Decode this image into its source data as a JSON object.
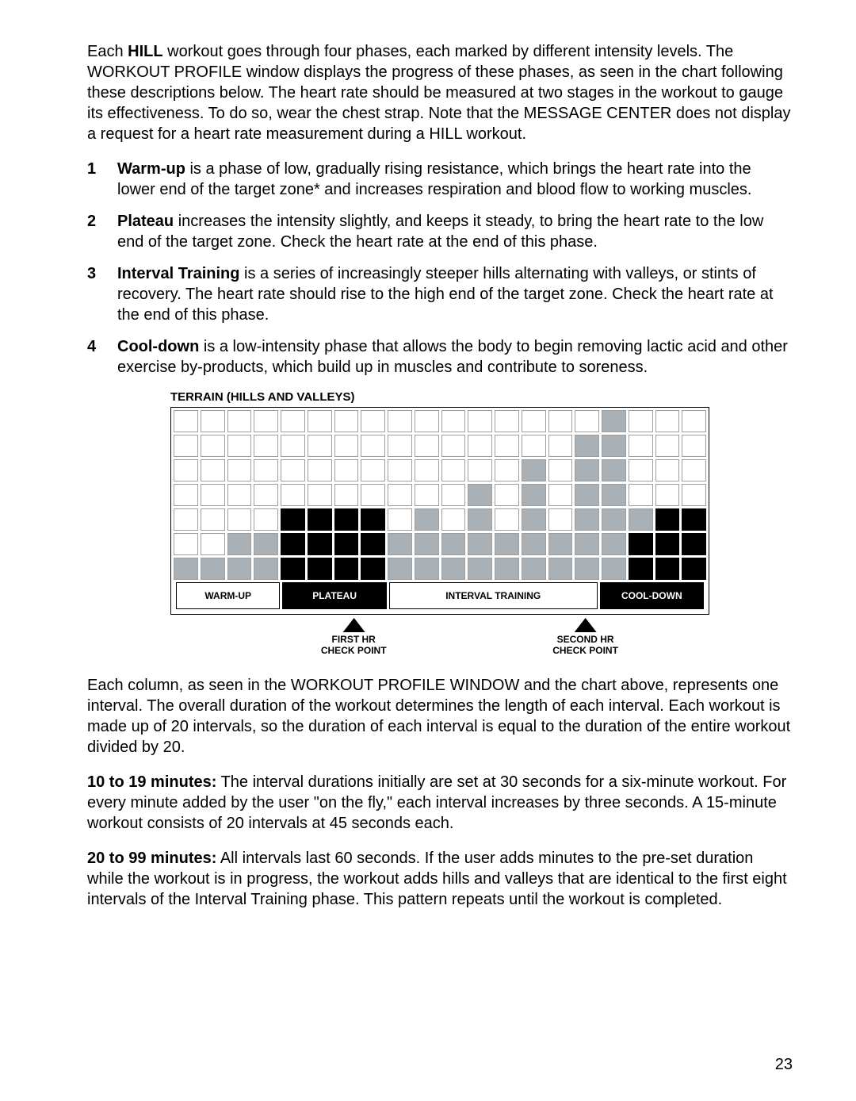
{
  "intro": "Each HILL workout goes through four phases, each marked by different intensity levels. The WORKOUT PROFILE window displays the progress of these phases, as seen in the chart following these descriptions below. The heart rate should be measured at two stages in the workout to gauge its effectiveness. To do so, wear the chest strap. Note that the MESSAGE CENTER does not display a request for a heart rate measurement during a HILL workout.",
  "intro_bold_word": "HILL",
  "list": {
    "items": [
      {
        "num": "1",
        "title": "Warm-up",
        "text": " is a phase of low, gradually rising resistance, which brings the heart rate into the lower end of the target zone* and increases respiration and blood flow to working muscles."
      },
      {
        "num": "2",
        "title": "Plateau",
        "text": " increases the intensity slightly, and keeps it steady, to bring the heart rate to the low end of the target zone. Check the heart rate at the end of this phase."
      },
      {
        "num": "3",
        "title": "Interval Training",
        "text": " is a series of increasingly steeper hills alternating with valleys, or stints of recovery. The heart rate should rise to the high end of the target zone. Check the heart rate at the end of this phase."
      },
      {
        "num": "4",
        "title": "Cool-down",
        "text": " is a low-intensity phase that allows the body to begin removing lactic acid and other exercise by-products, which build up in muscles and contribute to soreness."
      }
    ]
  },
  "chart": {
    "title": "TERRAIN (HILLS AND VALLEYS)",
    "rows": 7,
    "cols": 20,
    "heights_gray": [
      1,
      1,
      2,
      2,
      3,
      3,
      3,
      3,
      2,
      3,
      2,
      4,
      2,
      5,
      2,
      6,
      7,
      3,
      2,
      2
    ],
    "heights_black": [
      0,
      0,
      0,
      0,
      3,
      3,
      3,
      3,
      0,
      0,
      0,
      0,
      0,
      0,
      0,
      0,
      0,
      2,
      3,
      3
    ],
    "colors": {
      "empty": "#ffffff",
      "gray": "#a9b0b6",
      "black": "#000000",
      "grid_border": "#9e9e9e"
    },
    "phases": [
      {
        "label": "WARM-UP",
        "style": "white"
      },
      {
        "label": "PLATEAU",
        "style": "black"
      },
      {
        "label": "INTERVAL TRAINING",
        "style": "white"
      },
      {
        "label": "COOL-DOWN",
        "style": "black"
      }
    ],
    "checkpoints": [
      {
        "line1": "FIRST HR",
        "line2": "CHECK POINT",
        "left_pct": 34
      },
      {
        "line1": "SECOND HR",
        "line2": "CHECK POINT",
        "left_pct": 77
      }
    ]
  },
  "para_after_chart": "Each column, as seen in the WORKOUT PROFILE WINDOW and the chart above, represents one interval. The overall duration of the workout determines the length of each interval. Each workout is made up of 20 intervals, so the duration of each interval is equal to the duration of the entire workout divided by 20.",
  "para_10_19": {
    "bold": "10 to 19 minutes:",
    "text": " The interval durations initially are set at 30 seconds for a six-minute workout. For every minute added by the user \"on the fly,\" each interval increases by three seconds. A 15-minute workout consists of 20 intervals at 45 seconds each."
  },
  "para_20_99": {
    "bold": "20 to 99 minutes:",
    "text": " All intervals last 60 seconds. If the user adds minutes to the pre-set duration while the workout is in progress, the workout adds hills and valleys that are identical to the first eight intervals of the Interval Training phase. This pattern repeats until the workout is completed."
  },
  "page_number": "23"
}
